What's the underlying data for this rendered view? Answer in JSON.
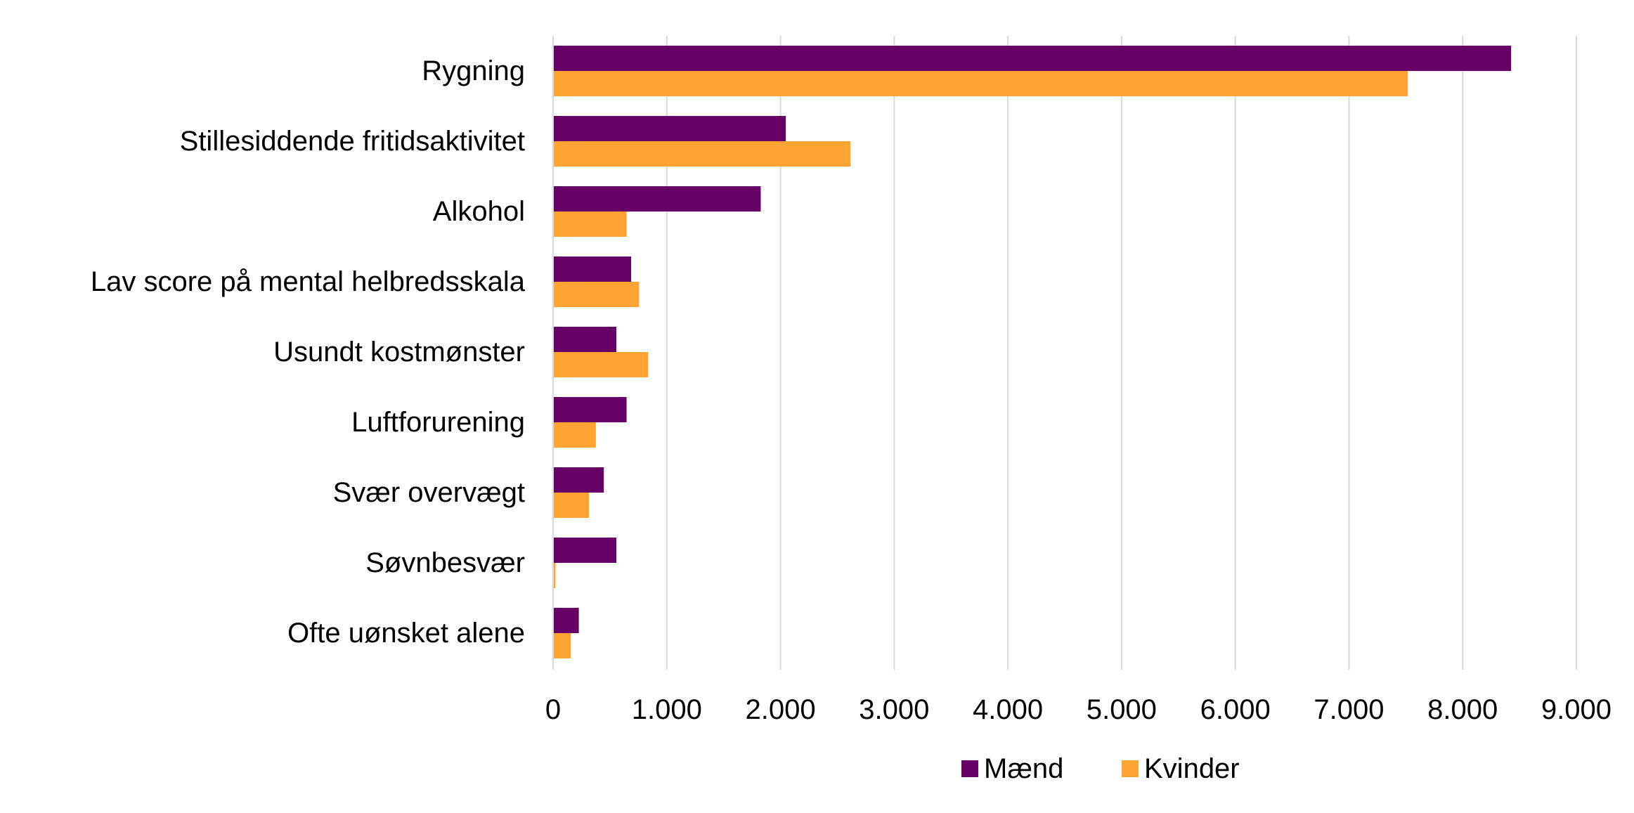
{
  "chart_data": {
    "type": "bar",
    "orientation": "horizontal",
    "categories": [
      "Rygning",
      "Stillesiddende fritidsaktivitet",
      "Alkohol",
      "Lav score på mental helbredsskala",
      "Usundt kostmønster",
      "Luftforurening",
      "Svær overvægt",
      "Søvnbesvær",
      "Ofte uønsket alene"
    ],
    "series": [
      {
        "name": "Mænd",
        "color": "#660066",
        "values": [
          8420,
          2040,
          1820,
          680,
          550,
          640,
          440,
          550,
          220
        ]
      },
      {
        "name": "Kvinder",
        "color": "#FFA333",
        "values": [
          7510,
          2610,
          640,
          750,
          830,
          370,
          310,
          15,
          150
        ]
      }
    ],
    "xlim": [
      0,
      9000
    ],
    "xticks": [
      0,
      1000,
      2000,
      3000,
      4000,
      5000,
      6000,
      7000,
      8000,
      9000
    ],
    "xtick_labels": [
      "0",
      "1.000",
      "2.000",
      "3.000",
      "4.000",
      "5.000",
      "6.000",
      "7.000",
      "8.000",
      "9.000"
    ],
    "grid": "vertical",
    "legend": "bottom-center",
    "title": "",
    "xlabel": "",
    "ylabel": ""
  }
}
